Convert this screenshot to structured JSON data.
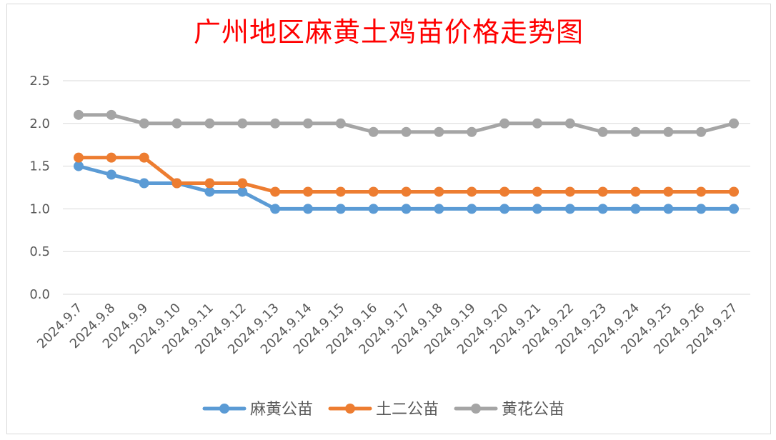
{
  "chart_data": {
    "type": "line",
    "title": "广州地区麻黄土鸡苗价格走势图",
    "categories": [
      "2024.9.7",
      "2024.9.8",
      "2024.9.9",
      "2024.9.10",
      "2024.9.11",
      "2024.9.12",
      "2024.9.13",
      "2024.9.14",
      "2024.9.15",
      "2024.9.16",
      "2024.9.17",
      "2024.9.18",
      "2024.9.19",
      "2024.9.20",
      "2024.9.21",
      "2024.9.22",
      "2024.9.23",
      "2024.9.24",
      "2024.9.25",
      "2024.9.26",
      "2024.9.27"
    ],
    "series": [
      {
        "name": "麻黄公苗",
        "color": "#5b9bd5",
        "values": [
          1.5,
          1.4,
          1.3,
          1.3,
          1.2,
          1.2,
          1.0,
          1.0,
          1.0,
          1.0,
          1.0,
          1.0,
          1.0,
          1.0,
          1.0,
          1.0,
          1.0,
          1.0,
          1.0,
          1.0,
          1.0
        ]
      },
      {
        "name": "土二公苗",
        "color": "#ed7d31",
        "values": [
          1.6,
          1.6,
          1.6,
          1.3,
          1.3,
          1.3,
          1.2,
          1.2,
          1.2,
          1.2,
          1.2,
          1.2,
          1.2,
          1.2,
          1.2,
          1.2,
          1.2,
          1.2,
          1.2,
          1.2,
          1.2
        ]
      },
      {
        "name": "黄花公苗",
        "color": "#a5a5a5",
        "values": [
          2.1,
          2.1,
          2.0,
          2.0,
          2.0,
          2.0,
          2.0,
          2.0,
          2.0,
          1.9,
          1.9,
          1.9,
          1.9,
          2.0,
          2.0,
          2.0,
          1.9,
          1.9,
          1.9,
          1.9,
          2.0
        ]
      }
    ],
    "ylim": [
      0,
      2.5
    ],
    "yticks": [
      "0.0",
      "0.5",
      "1.0",
      "1.5",
      "2.0",
      "2.5"
    ],
    "grid": true,
    "legend": "bottom"
  }
}
